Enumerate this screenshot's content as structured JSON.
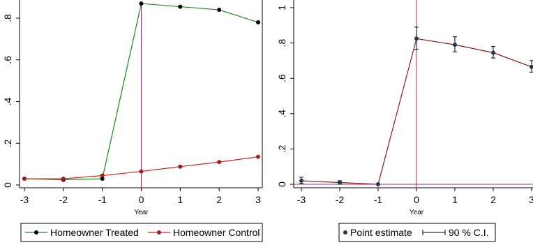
{
  "chart_data": [
    {
      "type": "line",
      "xlabel": "Year",
      "ylabel": "",
      "xlim": [
        -3,
        3
      ],
      "ylim": [
        0,
        0.9
      ],
      "x_ticks": [
        "-3",
        "-2",
        "-1",
        "0",
        "1",
        "2",
        "3"
      ],
      "y_ticks": [
        "0",
        ".2",
        ".4",
        ".6",
        ".8"
      ],
      "vline_x": 0,
      "legend_placement": "bottom",
      "series": [
        {
          "name": "Homeowner Treated",
          "color": "#1a8a1a",
          "marker_color": "#000000",
          "x": [
            -3,
            -2,
            -1,
            0,
            1,
            2,
            3
          ],
          "y": [
            0.03,
            0.025,
            0.03,
            0.87,
            0.855,
            0.84,
            0.78
          ]
        },
        {
          "name": "Homeowner Control",
          "color": "#d62020",
          "marker_color": "#a02020",
          "x": [
            -3,
            -2,
            -1,
            0,
            1,
            2,
            3
          ],
          "y": [
            0.03,
            0.03,
            0.045,
            0.065,
            0.088,
            0.11,
            0.135
          ]
        }
      ]
    },
    {
      "type": "line",
      "xlabel": "Year",
      "ylabel": "",
      "xlim": [
        -3,
        3
      ],
      "ylim": [
        0,
        1
      ],
      "x_ticks": [
        "-3",
        "-2",
        "-1",
        "0",
        "1",
        "2",
        "3"
      ],
      "y_ticks": [
        "0",
        ".2",
        ".4",
        ".6",
        ".8",
        "1"
      ],
      "vline_x": 0,
      "hline_y": 0.005,
      "legend_placement": "bottom",
      "point_legend": "Point estimate",
      "ci_legend": "90 % C.I.",
      "series": [
        {
          "name": "Point estimate",
          "color": "#8b1a1a",
          "marker_color": "#1f3550",
          "x": [
            -3,
            -2,
            -1,
            0,
            1,
            2,
            3
          ],
          "y": [
            0.02,
            0.01,
            0.0,
            0.825,
            0.79,
            0.745,
            0.665
          ],
          "ci_low": [
            0.005,
            0.0,
            0.0,
            0.765,
            0.75,
            0.715,
            0.635
          ],
          "ci_high": [
            0.04,
            0.02,
            0.0,
            0.89,
            0.835,
            0.78,
            0.7
          ]
        }
      ]
    }
  ]
}
